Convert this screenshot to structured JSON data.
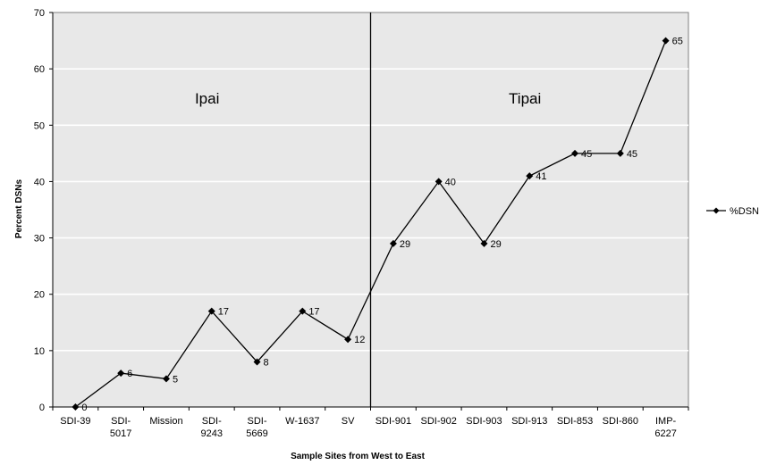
{
  "chart_data": {
    "type": "line",
    "xlabel": "Sample Sites from West to East",
    "ylabel": "Percent DSNs",
    "ylim": [
      0,
      70
    ],
    "y_ticks": [
      0,
      10,
      20,
      30,
      40,
      50,
      60,
      70
    ],
    "grid": true,
    "legend_position": "right",
    "categories": [
      [
        "SDI-39"
      ],
      [
        "SDI-",
        "5017"
      ],
      [
        "Mission"
      ],
      [
        "SDI-",
        "9243"
      ],
      [
        "SDI-",
        "5669"
      ],
      [
        "W-1637"
      ],
      [
        "SV"
      ],
      [
        "SDI-901"
      ],
      [
        "SDI-902"
      ],
      [
        "SDI-903"
      ],
      [
        "SDI-913"
      ],
      [
        "SDI-853"
      ],
      [
        "SDI-860"
      ],
      [
        "IMP-",
        "6227"
      ]
    ],
    "series": [
      {
        "name": "%DSN",
        "values": [
          0,
          6,
          5,
          17,
          8,
          17,
          12,
          29,
          40,
          29,
          41,
          45,
          45,
          65
        ]
      }
    ],
    "regions": [
      {
        "label": "Ipai",
        "from_category": 0,
        "to_category": 6
      },
      {
        "label": "Tipai",
        "from_category": 7,
        "to_category": 13
      }
    ],
    "divider_after_category": 6
  }
}
